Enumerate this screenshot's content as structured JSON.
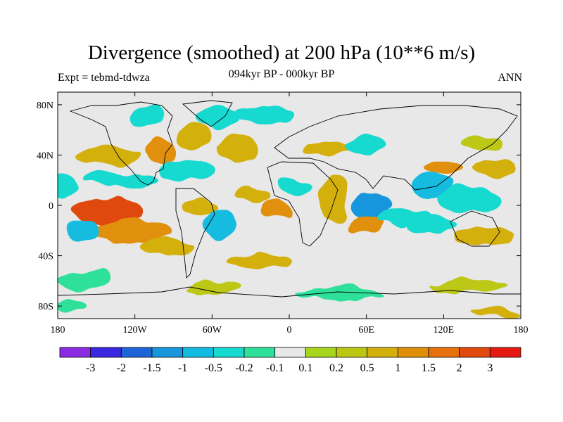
{
  "chart_data": {
    "type": "heatmap",
    "title": "Divergence (smoothed) at 200 hPa (10**6 m/s)",
    "subtitle_left": "Expt = tebmd-tdwza",
    "subtitle_center": "094kyr BP - 000kyr BP",
    "subtitle_right": "ANN",
    "x_ticks": [
      {
        "value": -180,
        "label": "180"
      },
      {
        "value": -120,
        "label": "120W"
      },
      {
        "value": -60,
        "label": "60W"
      },
      {
        "value": 0,
        "label": "0"
      },
      {
        "value": 60,
        "label": "60E"
      },
      {
        "value": 120,
        "label": "120E"
      },
      {
        "value": 180,
        "label": "180"
      }
    ],
    "y_ticks": [
      {
        "value": 80,
        "label": "80N"
      },
      {
        "value": 40,
        "label": "40N"
      },
      {
        "value": 0,
        "label": "0"
      },
      {
        "value": -40,
        "label": "40S"
      },
      {
        "value": -80,
        "label": "80S"
      }
    ],
    "xlim": [
      -180,
      180
    ],
    "ylim": [
      -90,
      90
    ],
    "colorbar": {
      "colors": [
        "#8a2be2",
        "#3a28e0",
        "#1f63d9",
        "#1796dc",
        "#12bce0",
        "#16d9cf",
        "#2ee09a",
        "#e8e8e8",
        "#a8d61c",
        "#bdc713",
        "#d4b00c",
        "#e09008",
        "#e5700c",
        "#e04a0c",
        "#e41a10"
      ],
      "labels": [
        "-3",
        "-2",
        "-1.5",
        "-1",
        "-0.5",
        "-0.2",
        "-0.1",
        "0.1",
        "0.2",
        "0.5",
        "1",
        "1.5",
        "2",
        "3"
      ]
    },
    "anomaly_regions": [
      {
        "lon": -140,
        "lat": -5,
        "rlon": 28,
        "rlat": 11,
        "value": 2
      },
      {
        "lon": -120,
        "lat": -20,
        "rlon": 30,
        "rlat": 8,
        "value": 1
      },
      {
        "lon": -95,
        "lat": -32,
        "rlon": 22,
        "rlat": 7,
        "value": 0.5
      },
      {
        "lon": -160,
        "lat": -20,
        "rlon": 14,
        "rlat": 8,
        "value": -1
      },
      {
        "lon": -175,
        "lat": 15,
        "rlon": 10,
        "rlat": 10,
        "value": -0.5
      },
      {
        "lon": -140,
        "lat": 40,
        "rlon": 25,
        "rlat": 8,
        "value": 0.5
      },
      {
        "lon": -130,
        "lat": 20,
        "rlon": 30,
        "rlat": 6,
        "value": -0.5
      },
      {
        "lon": -100,
        "lat": 42,
        "rlon": 12,
        "rlat": 10,
        "value": 1
      },
      {
        "lon": -80,
        "lat": 28,
        "rlon": 20,
        "rlat": 8,
        "value": -0.5
      },
      {
        "lon": -110,
        "lat": 70,
        "rlon": 15,
        "rlat": 8,
        "value": -0.5
      },
      {
        "lon": -75,
        "lat": 55,
        "rlon": 15,
        "rlat": 10,
        "value": 0.5
      },
      {
        "lon": -55,
        "lat": 70,
        "rlon": 18,
        "rlat": 8,
        "value": -0.5
      },
      {
        "lon": -40,
        "lat": 45,
        "rlon": 18,
        "rlat": 10,
        "value": 0.5
      },
      {
        "lon": -20,
        "lat": 72,
        "rlon": 25,
        "rlat": 6,
        "value": -0.5
      },
      {
        "lon": -70,
        "lat": 0,
        "rlon": 15,
        "rlat": 6,
        "value": 0.5
      },
      {
        "lon": -55,
        "lat": -15,
        "rlon": 14,
        "rlat": 12,
        "value": -1
      },
      {
        "lon": -30,
        "lat": 8,
        "rlon": 14,
        "rlat": 6,
        "value": 0.5
      },
      {
        "lon": -10,
        "lat": -2,
        "rlon": 12,
        "rlat": 8,
        "value": 1
      },
      {
        "lon": -25,
        "lat": -45,
        "rlon": 25,
        "rlat": 6,
        "value": 0.5
      },
      {
        "lon": 5,
        "lat": 15,
        "rlon": 15,
        "rlat": 6,
        "value": -0.5
      },
      {
        "lon": 35,
        "lat": 5,
        "rlon": 10,
        "rlat": 20,
        "value": 0.5
      },
      {
        "lon": 30,
        "lat": 45,
        "rlon": 20,
        "rlat": 6,
        "value": 0.5
      },
      {
        "lon": 60,
        "lat": 48,
        "rlon": 15,
        "rlat": 8,
        "value": -0.5
      },
      {
        "lon": 65,
        "lat": 0,
        "rlon": 15,
        "rlat": 10,
        "value": -1.5
      },
      {
        "lon": 60,
        "lat": -15,
        "rlon": 15,
        "rlat": 8,
        "value": 1
      },
      {
        "lon": 90,
        "lat": -10,
        "rlon": 20,
        "rlat": 6,
        "value": -0.5
      },
      {
        "lon": 110,
        "lat": 15,
        "rlon": 15,
        "rlat": 10,
        "value": -1
      },
      {
        "lon": 120,
        "lat": 30,
        "rlon": 15,
        "rlat": 6,
        "value": 1
      },
      {
        "lon": 140,
        "lat": 5,
        "rlon": 25,
        "rlat": 10,
        "value": -0.5
      },
      {
        "lon": 150,
        "lat": -25,
        "rlon": 25,
        "rlat": 8,
        "value": 0.5
      },
      {
        "lon": 110,
        "lat": -15,
        "rlon": 20,
        "rlat": 6,
        "value": -0.5
      },
      {
        "lon": 160,
        "lat": 30,
        "rlon": 18,
        "rlat": 6,
        "value": 0.5
      },
      {
        "lon": 150,
        "lat": 50,
        "rlon": 15,
        "rlat": 6,
        "value": 0.2
      },
      {
        "lon": -160,
        "lat": -60,
        "rlon": 20,
        "rlat": 8,
        "value": -0.2
      },
      {
        "lon": -60,
        "lat": -65,
        "rlon": 20,
        "rlat": 5,
        "value": 0.2
      },
      {
        "lon": 40,
        "lat": -70,
        "rlon": 35,
        "rlat": 5,
        "value": -0.2
      },
      {
        "lon": 140,
        "lat": -65,
        "rlon": 30,
        "rlat": 6,
        "value": 0.2
      },
      {
        "lon": -170,
        "lat": -80,
        "rlon": 12,
        "rlat": 4,
        "value": -0.2
      },
      {
        "lon": 160,
        "lat": -85,
        "rlon": 20,
        "rlat": 3,
        "value": 0.5
      }
    ]
  }
}
